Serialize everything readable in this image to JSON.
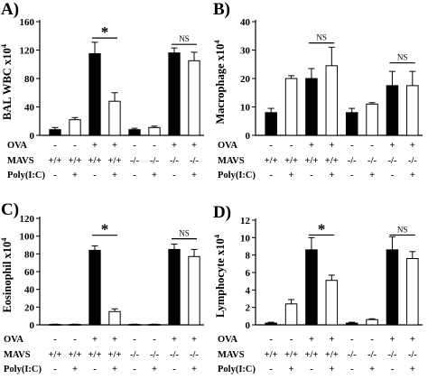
{
  "figure": {
    "colors": {
      "filled": "#000000",
      "open": "#ffffff",
      "stroke": "#000000"
    }
  },
  "row_labels": [
    "OVA",
    "MAVS",
    "Poly(I:C)"
  ],
  "conditions": {
    "ova": [
      "-",
      "-",
      "+",
      "+",
      "-",
      "-",
      "+",
      "+"
    ],
    "mavs": [
      "+/+",
      "+/+",
      "+/+",
      "+/+",
      "-/-",
      "-/-",
      "-/-",
      "-/-"
    ],
    "poly": [
      "-",
      "+",
      "-",
      "+",
      "-",
      "+",
      "-",
      "+"
    ]
  },
  "chart_data": [
    {
      "type": "bar",
      "panel_label": "A)",
      "ylabel": "BAL WBC x10",
      "ylabel_exp": "4",
      "ylim": [
        0,
        160
      ],
      "yticks": [
        0,
        40,
        80,
        120,
        160
      ],
      "values": [
        8,
        22,
        115,
        48,
        8,
        11,
        116,
        105
      ],
      "errors": [
        3,
        3,
        16,
        12,
        2,
        2,
        7,
        12
      ],
      "fills": [
        "black",
        "white",
        "black",
        "white",
        "black",
        "white",
        "black",
        "white"
      ],
      "annotations": [
        {
          "text": "*",
          "from": 2,
          "to": 3,
          "y": 137
        },
        {
          "text": "NS",
          "from": 6,
          "to": 7,
          "y": 128
        }
      ]
    },
    {
      "type": "bar",
      "panel_label": "B)",
      "ylabel": "Macrophage x10",
      "ylabel_exp": "4",
      "ylim": [
        0,
        40
      ],
      "yticks": [
        0,
        10,
        20,
        30,
        40
      ],
      "values": [
        8,
        20,
        20,
        24.5,
        8,
        11,
        17.5,
        17.5
      ],
      "errors": [
        1.5,
        1,
        3.5,
        6.5,
        1.5,
        0.5,
        5,
        5
      ],
      "fills": [
        "black",
        "white",
        "black",
        "white",
        "black",
        "white",
        "black",
        "white"
      ],
      "annotations": [
        {
          "text": "NS",
          "from": 2,
          "to": 3,
          "y": 32.5
        },
        {
          "text": "NS",
          "from": 6,
          "to": 7,
          "y": 25.5
        }
      ]
    },
    {
      "type": "bar",
      "panel_label": "C)",
      "ylabel": "Eosinophil x10",
      "ylabel_exp": "4",
      "ylim": [
        0,
        120
      ],
      "yticks": [
        0,
        20,
        40,
        60,
        80,
        100,
        120
      ],
      "values": [
        0.5,
        0.5,
        84,
        15,
        0.5,
        0.5,
        85,
        77
      ],
      "errors": [
        0.3,
        0.3,
        5,
        3,
        0.3,
        0.3,
        6,
        8
      ],
      "fills": [
        "black",
        "white",
        "black",
        "white",
        "black",
        "white",
        "black",
        "white"
      ],
      "annotations": [
        {
          "text": "*",
          "from": 2,
          "to": 3,
          "y": 101
        },
        {
          "text": "NS",
          "from": 6,
          "to": 7,
          "y": 97
        }
      ]
    },
    {
      "type": "bar",
      "panel_label": "D)",
      "ylabel": "Lymphocyte x10",
      "ylabel_exp": "4",
      "ylim": [
        0,
        12
      ],
      "yticks": [
        0,
        2,
        4,
        6,
        8,
        10,
        12
      ],
      "values": [
        0.2,
        2.4,
        8.6,
        5.1,
        0.2,
        0.6,
        8.6,
        7.6
      ],
      "errors": [
        0.1,
        0.5,
        1.4,
        0.6,
        0.1,
        0.1,
        1.5,
        0.8
      ],
      "fills": [
        "black",
        "white",
        "black",
        "white",
        "black",
        "white",
        "black",
        "white"
      ],
      "annotations": [
        {
          "text": "*",
          "from": 2,
          "to": 3,
          "y": 10.3
        },
        {
          "text": "NS",
          "from": 6,
          "to": 7,
          "y": 10.3
        }
      ]
    }
  ]
}
